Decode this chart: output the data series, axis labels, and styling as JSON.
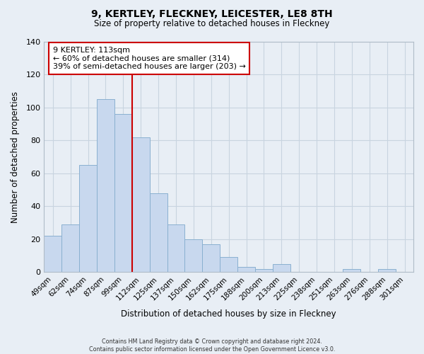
{
  "title": "9, KERTLEY, FLECKNEY, LEICESTER, LE8 8TH",
  "subtitle": "Size of property relative to detached houses in Fleckney",
  "xlabel": "Distribution of detached houses by size in Fleckney",
  "ylabel": "Number of detached properties",
  "bar_color": "#c8d8ee",
  "bar_edge_color": "#8ab0d0",
  "categories": [
    "49sqm",
    "62sqm",
    "74sqm",
    "87sqm",
    "99sqm",
    "112sqm",
    "125sqm",
    "137sqm",
    "150sqm",
    "162sqm",
    "175sqm",
    "188sqm",
    "200sqm",
    "213sqm",
    "225sqm",
    "238sqm",
    "251sqm",
    "263sqm",
    "276sqm",
    "288sqm",
    "301sqm"
  ],
  "values": [
    22,
    29,
    65,
    105,
    96,
    82,
    48,
    29,
    20,
    17,
    9,
    3,
    2,
    5,
    0,
    0,
    0,
    2,
    0,
    2,
    0
  ],
  "vline_color": "#cc0000",
  "annotation_text": "9 KERTLEY: 113sqm\n← 60% of detached houses are smaller (314)\n39% of semi-detached houses are larger (203) →",
  "annotation_box_color": "#ffffff",
  "annotation_box_edge": "#cc0000",
  "ylim": [
    0,
    140
  ],
  "yticks": [
    0,
    20,
    40,
    60,
    80,
    100,
    120,
    140
  ],
  "footnote": "Contains HM Land Registry data © Crown copyright and database right 2024.\nContains public sector information licensed under the Open Government Licence v3.0.",
  "background_color": "#e8eef5",
  "grid_color": "#c8d4e0"
}
